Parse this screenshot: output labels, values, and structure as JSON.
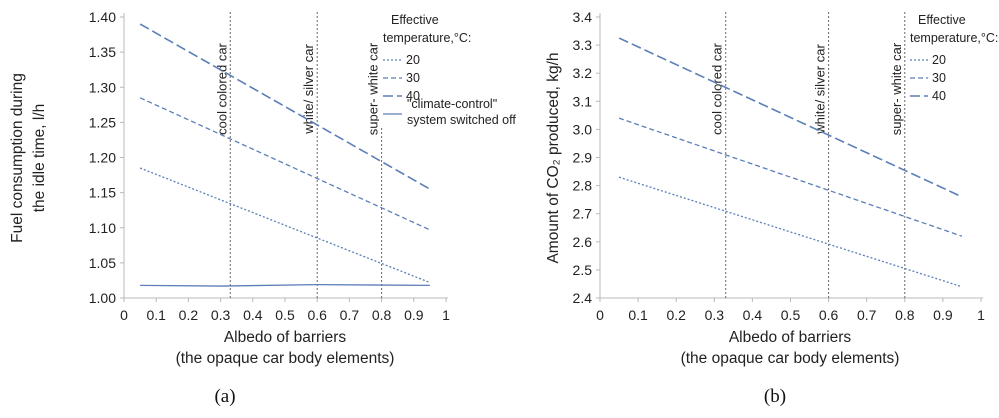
{
  "chart_data": [
    {
      "type": "line",
      "panel_label": "(a)",
      "ylabel_lines": [
        "Fuel consumption during",
        "the idle time, l/h"
      ],
      "xlabel_lines": [
        "Albedo of barriers",
        "(the opaque car body elements)"
      ],
      "xlim": [
        0,
        1
      ],
      "ylim": [
        1.0,
        1.4
      ],
      "xticks": [
        0,
        0.1,
        0.2,
        0.3,
        0.4,
        0.5,
        0.6,
        0.7,
        0.8,
        0.9,
        1
      ],
      "xtick_labels": [
        "0",
        "0.1",
        "0.2",
        "0.3",
        "0.4",
        "0.5",
        "0.6",
        "0.7",
        "0.8",
        "0.9",
        "1"
      ],
      "yticks": [
        1.0,
        1.05,
        1.1,
        1.15,
        1.2,
        1.25,
        1.3,
        1.35,
        1.4
      ],
      "ytick_labels": [
        "1.00",
        "1.05",
        "1.10",
        "1.15",
        "1.20",
        "1.25",
        "1.30",
        "1.35",
        "1.40"
      ],
      "legend_title_lines": [
        "Effective",
        "temperature,°C:"
      ],
      "series": [
        {
          "name": "20",
          "style": "dotted",
          "x": [
            0.05,
            0.95
          ],
          "y": [
            1.185,
            1.022
          ]
        },
        {
          "name": "30",
          "style": "dashed",
          "x": [
            0.05,
            0.95
          ],
          "y": [
            1.285,
            1.097
          ]
        },
        {
          "name": "40",
          "style": "longdash",
          "x": [
            0.05,
            0.95
          ],
          "y": [
            1.39,
            1.155
          ]
        },
        {
          "name": "\"climate-control\" system switched off",
          "name_lines": [
            "\"climate-control\"",
            "system switched off"
          ],
          "style": "solid",
          "x": [
            0.05,
            0.3,
            0.6,
            0.95
          ],
          "y": [
            1.018,
            1.017,
            1.019,
            1.018
          ]
        }
      ],
      "reference_lines": [
        {
          "x": 0.33,
          "label": "cool colored car"
        },
        {
          "x": 0.6,
          "label": "white/ silver car"
        },
        {
          "x": 0.8,
          "label": "super- white car"
        }
      ]
    },
    {
      "type": "line",
      "panel_label": "(b)",
      "ylabel_lines": [
        "Amount of CO₂ produced, kg/h"
      ],
      "xlabel_lines": [
        "Albedo of barriers",
        "(the opaque car body elements)"
      ],
      "xlim": [
        0,
        1
      ],
      "ylim": [
        2.4,
        3.4
      ],
      "xticks": [
        0,
        0.1,
        0.2,
        0.3,
        0.4,
        0.5,
        0.6,
        0.7,
        0.8,
        0.9,
        1
      ],
      "xtick_labels": [
        "0",
        "0.1",
        "0.2",
        "0.3",
        "0.4",
        "0.5",
        "0.6",
        "0.7",
        "0.8",
        "0.9",
        "1"
      ],
      "yticks": [
        2.4,
        2.5,
        2.6,
        2.7,
        2.8,
        2.9,
        3.0,
        3.1,
        3.2,
        3.3,
        3.4
      ],
      "ytick_labels": [
        "2.4",
        "2.5",
        "2.6",
        "2.7",
        "2.8",
        "2.9",
        "3.0",
        "3.1",
        "3.2",
        "3.3",
        "3.4"
      ],
      "legend_title_lines": [
        "Effective",
        "temperature,°C:"
      ],
      "series": [
        {
          "name": "20",
          "style": "dotted",
          "x": [
            0.05,
            0.95
          ],
          "y": [
            2.83,
            2.44
          ]
        },
        {
          "name": "30",
          "style": "dashed",
          "x": [
            0.05,
            0.95
          ],
          "y": [
            3.04,
            2.62
          ]
        },
        {
          "name": "40",
          "style": "longdash",
          "x": [
            0.05,
            0.95
          ],
          "y": [
            3.325,
            2.76
          ]
        }
      ],
      "reference_lines": [
        {
          "x": 0.33,
          "label": "cool colored car"
        },
        {
          "x": 0.6,
          "label": "white/ silver car"
        },
        {
          "x": 0.8,
          "label": "super- white car"
        }
      ]
    }
  ],
  "colors": {
    "series_line": "#5b7fb8",
    "reference_line": "#666666",
    "axis": "#b8b8b8",
    "text": "#222222"
  }
}
